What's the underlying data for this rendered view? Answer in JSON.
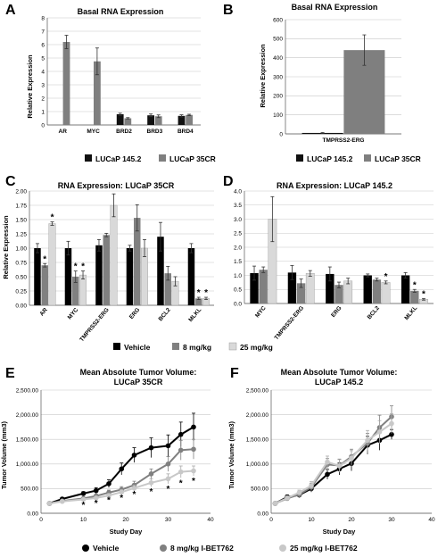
{
  "panels": {
    "A": {
      "letter": "A",
      "chart_data": {
        "type": "bar",
        "title": "Basal RNA Expression",
        "ylabel": "Relative Expression",
        "xlabel": "",
        "ylim": [
          0,
          8
        ],
        "yticks": [
          "0",
          "1",
          "2",
          "3",
          "4",
          "5",
          "6",
          "7",
          "8"
        ],
        "grid": true,
        "categories": [
          "AR",
          "MYC",
          "BRD2",
          "BRD3",
          "BRD4"
        ],
        "series": [
          {
            "name": "LUCaP 145.2",
            "color": "#111111",
            "values": [
              0,
              0,
              0.8,
              0.72,
              0.68
            ],
            "errors": [
              0,
              0,
              0.08,
              0.1,
              0.08
            ]
          },
          {
            "name": "LUCaP 35CR",
            "color": "#7f7f7f",
            "values": [
              6.2,
              4.75,
              0.5,
              0.65,
              0.75
            ],
            "errors": [
              0.5,
              1.0,
              0.05,
              0.1,
              0.05
            ]
          }
        ]
      }
    },
    "B": {
      "letter": "B",
      "chart_data": {
        "type": "bar",
        "title": "Basal RNA Expression",
        "ylabel": "Relative Expression",
        "xlabel": "",
        "ylim": [
          0,
          600
        ],
        "yticks": [
          "0",
          "100",
          "200",
          "300",
          "400",
          "500",
          "600"
        ],
        "grid": true,
        "categories": [
          "TMPRSS2-ERG"
        ],
        "series": [
          {
            "name": "LUCaP 145.2",
            "color": "#111111",
            "values": [
              5
            ],
            "errors": [
              2
            ]
          },
          {
            "name": "LUCaP 35CR",
            "color": "#7f7f7f",
            "values": [
              440
            ],
            "errors": [
              80
            ]
          }
        ]
      }
    },
    "C": {
      "letter": "C",
      "chart_data": {
        "type": "bar",
        "title": "RNA Expression: LUCaP 35CR",
        "ylabel": "Relative Expression",
        "xlabel": "",
        "ylim": [
          0,
          2
        ],
        "yticks": [
          "0.00",
          "0.25",
          "0.50",
          "0.75",
          "1.00",
          "1.25",
          "1.50",
          "1.75",
          "2.00"
        ],
        "grid": true,
        "categories": [
          "AR",
          "MYC",
          "TMPRSS2-ERG",
          "ERG",
          "BCL2",
          "MLKL"
        ],
        "series": [
          {
            "name": "Vehicle",
            "color": "#000000",
            "values": [
              1.0,
              1.0,
              1.05,
              1.0,
              1.2,
              1.0
            ],
            "errors": [
              0.08,
              0.12,
              0.1,
              0.05,
              0.25,
              0.08
            ]
          },
          {
            "name": "8 mg/kg",
            "color": "#808080",
            "values": [
              0.7,
              0.5,
              1.23,
              1.53,
              0.56,
              0.12
            ],
            "errors": [
              0.03,
              0.1,
              0.03,
              0.23,
              0.12,
              0.02
            ]
          },
          {
            "name": "25 mg/kg",
            "color": "#d9d9d9",
            "values": [
              1.43,
              0.53,
              1.75,
              1.0,
              0.42,
              0.12
            ],
            "errors": [
              0.03,
              0.07,
              0.2,
              0.15,
              0.08,
              0.02
            ]
          }
        ],
        "annotations": [
          "*",
          "*",
          "*",
          "*",
          "*",
          "*"
        ]
      }
    },
    "D": {
      "letter": "D",
      "chart_data": {
        "type": "bar",
        "title": "RNA Expression: LUCaP 145.2",
        "ylabel": "",
        "xlabel": "",
        "ylim": [
          0,
          4
        ],
        "yticks": [
          "0.0",
          "0.5",
          "1.0",
          "1.5",
          "2.0",
          "2.5",
          "3.0",
          "3.5",
          "4.0"
        ],
        "grid": true,
        "categories": [
          "MYC",
          "TMPRSS2-ERG",
          "ERG",
          "BCL2",
          "MLKL"
        ],
        "series": [
          {
            "name": "Vehicle",
            "color": "#000000",
            "values": [
              1.08,
              1.1,
              1.05,
              1.0,
              1.0
            ],
            "errors": [
              0.25,
              0.25,
              0.25,
              0.05,
              0.1
            ]
          },
          {
            "name": "8 mg/kg",
            "color": "#808080",
            "values": [
              1.2,
              0.72,
              0.66,
              0.85,
              0.45
            ],
            "errors": [
              0.1,
              0.15,
              0.1,
              0.05,
              0.05
            ]
          },
          {
            "name": "25 mg/kg",
            "color": "#d9d9d9",
            "values": [
              3.0,
              1.07,
              0.8,
              0.75,
              0.15
            ],
            "errors": [
              0.8,
              0.1,
              0.1,
              0.05,
              0.03
            ]
          }
        ],
        "annotations": [
          "*",
          "*",
          "*"
        ]
      }
    },
    "E": {
      "letter": "E",
      "chart_data": {
        "type": "line",
        "title": "Mean Absolute Tumor Volume:",
        "subtitle": "LUCaP 35CR",
        "xlabel": "Study Day",
        "ylabel": "Tumor Volume (mm3)",
        "xlim": [
          0,
          40
        ],
        "ylim": [
          0,
          2500
        ],
        "xticks": [
          "0",
          "10",
          "20",
          "30",
          "40"
        ],
        "yticks": [
          "0.00",
          "500.00",
          "1,000.00",
          "1,500.00",
          "2,000.00",
          "2,500.00"
        ],
        "grid": true,
        "series": [
          {
            "name": "Vehicle",
            "color": "#000000",
            "x": [
              2,
              5,
              10,
              13,
              16,
              19,
              22,
              26,
              30,
              33,
              36
            ],
            "y": [
              200,
              290,
              400,
              460,
              600,
              900,
              1180,
              1330,
              1370,
              1600,
              1750
            ],
            "errors": [
              20,
              30,
              40,
              60,
              80,
              120,
              150,
              200,
              220,
              250,
              280
            ]
          },
          {
            "name": "8 mg/kg I-BET762",
            "color": "#808080",
            "x": [
              2,
              5,
              10,
              13,
              16,
              19,
              22,
              26,
              30,
              33,
              36
            ],
            "y": [
              200,
              250,
              300,
              350,
              420,
              480,
              570,
              800,
              1000,
              1280,
              1300
            ],
            "errors": [
              20,
              25,
              30,
              40,
              50,
              60,
              80,
              100,
              150,
              200,
              200
            ]
          },
          {
            "name": "25 mg/kg I-BET762",
            "color": "#c8c8c8",
            "x": [
              2,
              5,
              10,
              13,
              16,
              19,
              22,
              26,
              30,
              33,
              36
            ],
            "y": [
              200,
              240,
              280,
              310,
              360,
              430,
              510,
              620,
              700,
              840,
              860
            ],
            "errors": [
              15,
              20,
              25,
              30,
              40,
              50,
              60,
              80,
              100,
              120,
              100
            ]
          }
        ],
        "annotations": [
          "*",
          "*",
          "*",
          "*",
          "*",
          "*",
          "*",
          "*",
          "*"
        ]
      }
    },
    "F": {
      "letter": "F",
      "chart_data": {
        "type": "line",
        "title": "Mean Absolute Tumor Volume:",
        "subtitle": "LUCaP 145.2",
        "xlabel": "Study Day",
        "ylabel": "Tumor Volume (mm3)",
        "xlim": [
          0,
          40
        ],
        "ylim": [
          0,
          2500
        ],
        "xticks": [
          "0",
          "10",
          "20",
          "30",
          "40"
        ],
        "yticks": [
          "0.00",
          "500.00",
          "1,000.00",
          "1,500.00",
          "2,000.00",
          "2,500.00"
        ],
        "grid": true,
        "series": [
          {
            "name": "Vehicle",
            "color": "#000000",
            "x": [
              1,
              4,
              7,
              10,
              14,
              17,
              20,
              24,
              27,
              30
            ],
            "y": [
              200,
              330,
              370,
              500,
              790,
              900,
              1010,
              1380,
              1480,
              1600
            ],
            "errors": [
              30,
              40,
              50,
              70,
              100,
              120,
              150,
              180,
              200,
              100
            ]
          },
          {
            "name": "8 mg/kg I-BET762",
            "color": "#808080",
            "x": [
              1,
              4,
              7,
              10,
              14,
              17,
              20,
              24,
              27,
              30
            ],
            "y": [
              200,
              300,
              380,
              530,
              990,
              970,
              1150,
              1420,
              1740,
              1960
            ],
            "errors": [
              30,
              40,
              50,
              80,
              120,
              130,
              150,
              200,
              250,
              220
            ]
          },
          {
            "name": "25 mg/kg I-BET762",
            "color": "#c8c8c8",
            "x": [
              1,
              4,
              7,
              10,
              14,
              17,
              20,
              24,
              27,
              30
            ],
            "y": [
              200,
              310,
              420,
              560,
              1040,
              960,
              1120,
              1480,
              1650,
              1820
            ],
            "errors": [
              30,
              40,
              50,
              80,
              120,
              130,
              150,
              200,
              230,
              200
            ]
          }
        ]
      }
    }
  },
  "legends": {
    "AB": [
      "LUCaP 145.2",
      "LUCaP 35CR"
    ],
    "CD": [
      "Vehicle",
      "8 mg/kg",
      "25 mg/kg"
    ],
    "EF": [
      "Vehicle",
      "8 mg/kg I-BET762",
      "25 mg/kg I-BET762"
    ]
  }
}
